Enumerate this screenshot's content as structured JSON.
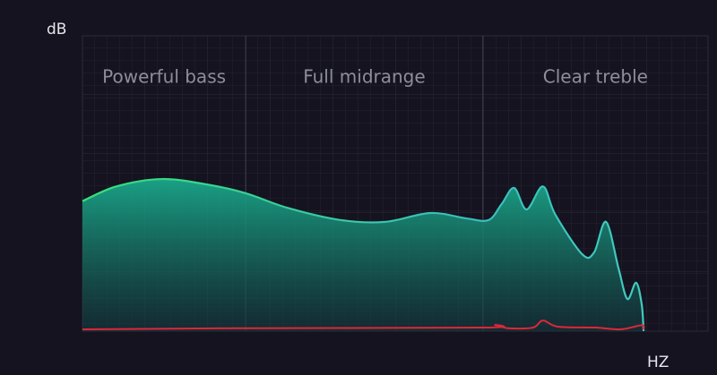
{
  "chart_data": {
    "type": "area",
    "y_label": "dB",
    "x_label": "HZ",
    "xlim": [
      0,
      100
    ],
    "ylim": [
      0,
      100
    ],
    "regions": [
      {
        "label": "Powerful bass",
        "from": 0,
        "to": 26.1
      },
      {
        "label": "Full midrange",
        "from": 26.1,
        "to": 64
      },
      {
        "label": "Clear treble",
        "from": 64,
        "to": 100
      }
    ],
    "series": [
      {
        "color": "#39e07a",
        "x": [
          0,
          5.4,
          12.6,
          19.8,
          26.1,
          32.7,
          41.3,
          48.4,
          55.6,
          61.3,
          64.9,
          67,
          69,
          71,
          73.6,
          75.6,
          79.9,
          81.8,
          83.7,
          85.7,
          87.1,
          88.5,
          89.4,
          89.7
        ],
        "values": [
          44,
          49,
          51.5,
          49.7,
          46.7,
          41.8,
          37.6,
          37,
          40,
          38.2,
          37.6,
          43,
          48.5,
          41.2,
          49,
          39.4,
          26,
          26.7,
          37,
          21.2,
          10.9,
          16.4,
          9,
          0
        ]
      },
      {
        "color": "#e0263a",
        "x": [
          0,
          26.1,
          64,
          66,
          68,
          72,
          73.6,
          76,
          82,
          86,
          89.4,
          89.7
        ],
        "values": [
          0.6,
          1,
          1.2,
          2.1,
          1,
          1.2,
          3.6,
          1.5,
          1.2,
          0.6,
          2,
          0.6
        ]
      }
    ]
  }
}
